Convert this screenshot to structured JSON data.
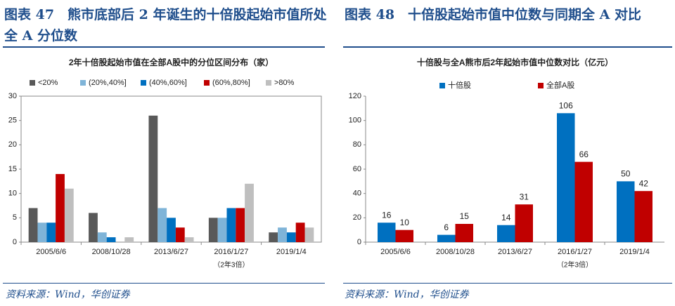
{
  "chart_data": [
    {
      "type": "bar",
      "heading": "图表 47　熊市底部后 2 年诞生的十倍股起始市值所处全 A 分位数",
      "title": "2年十倍股起始市值在全部A股中的分位区间分布（家）",
      "categories": [
        "2005/6/6",
        "2008/10/28",
        "2013/6/27",
        "2016/1/27",
        "2019/1/4"
      ],
      "note": "（2年3倍）",
      "series": [
        {
          "name": "<20%",
          "color": "#595959",
          "values": [
            7,
            6,
            26,
            5,
            2
          ]
        },
        {
          "name": "(20%,40%]",
          "color": "#7fb4d8",
          "values": [
            4,
            2,
            7,
            5,
            3
          ]
        },
        {
          "name": "(40%,60%]",
          "color": "#0070c0",
          "values": [
            4,
            1,
            5,
            7,
            2
          ]
        },
        {
          "name": "(60%,80%]",
          "color": "#c00000",
          "values": [
            14,
            0,
            3,
            7,
            4
          ]
        },
        {
          "name": ">80%",
          "color": "#bfbfbf",
          "values": [
            11,
            1,
            1,
            12,
            3
          ]
        }
      ],
      "ylim": [
        0,
        30
      ],
      "yticks": [
        0,
        5,
        10,
        15,
        20,
        25,
        30
      ],
      "frame": true,
      "show_values": false,
      "source": "资料来源：Wind，华创证券"
    },
    {
      "type": "bar",
      "heading": "图表 48　十倍股起始市值中位数与同期全 A 对比",
      "title": "十倍股与全A熊市后2年起始市值中位数对比（亿元）",
      "categories": [
        "2005/6/6",
        "2008/10/28",
        "2013/6/27",
        "2016/1/27",
        "2019/1/4"
      ],
      "note": "（2年3倍）",
      "series": [
        {
          "name": "十倍股",
          "color": "#0070c0",
          "values": [
            16,
            6,
            14,
            106,
            50
          ]
        },
        {
          "name": "全部A股",
          "color": "#c00000",
          "values": [
            10,
            15,
            31,
            66,
            42
          ]
        }
      ],
      "ylim": [
        0,
        120
      ],
      "yticks": [
        0,
        20,
        40,
        60,
        80,
        100,
        120
      ],
      "frame": false,
      "show_values": true,
      "source": "资料来源：Wind，华创证券"
    }
  ]
}
